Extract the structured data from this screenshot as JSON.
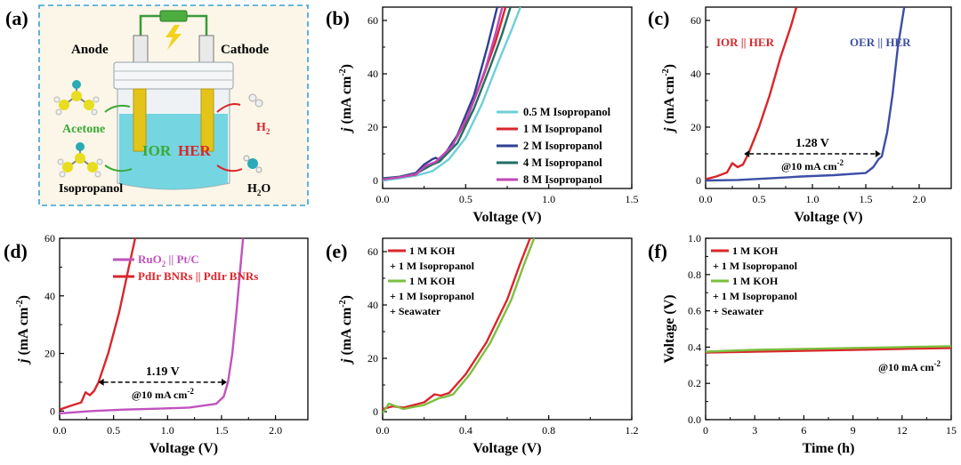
{
  "figure": {
    "schematic": {
      "panel_label": "(a)",
      "anode": "Anode",
      "cathode": "Cathode",
      "ior": "IOR",
      "her": "HER",
      "h2": "H",
      "h2_sub": "2",
      "acetone": "Acetone",
      "isopropanol": "Isopropanol",
      "h2o": "H",
      "h2o_sub": "2",
      "h2o_tail": "O",
      "colors": {
        "frame": "#3aa0d8",
        "ior": "#3aaa35",
        "her": "#d9262b",
        "electrolyte": "#5fd0dc"
      }
    }
  },
  "chart_data": [
    {
      "id": "b",
      "panel_label": "(b)",
      "type": "line",
      "xlabel": "Voltage (V)",
      "ylabel_j": "j",
      "ylabel_unit": " (mA cm",
      "ylabel_exp": "-2",
      "ylabel_close": ")",
      "xlim": [
        0.0,
        1.5
      ],
      "ylim": [
        -3,
        65
      ],
      "xticks": [
        0.0,
        0.5,
        1.0,
        1.5
      ],
      "xtick_labels": [
        "0.0",
        "0.5",
        "1.0",
        "1.5"
      ],
      "yticks": [
        0,
        20,
        40,
        60
      ],
      "ytick_labels": [
        "0",
        "20",
        "40",
        "60"
      ],
      "legend_position": "center-right",
      "series": [
        {
          "name": "0.5 M Isopropanol",
          "color": "#6ccfd8",
          "x": [
            0.0,
            0.1,
            0.2,
            0.3,
            0.4,
            0.5,
            0.6,
            0.7,
            0.78,
            0.83
          ],
          "y": [
            0.0,
            0.8,
            1.8,
            3.5,
            8.0,
            16.0,
            29.0,
            45.0,
            57.0,
            65.0
          ]
        },
        {
          "name": "1 M Isopropanol",
          "color": "#d9262b",
          "x": [
            0.0,
            0.1,
            0.2,
            0.25,
            0.3,
            0.4,
            0.5,
            0.6,
            0.68,
            0.74
          ],
          "y": [
            0.5,
            1.3,
            2.2,
            5.0,
            6.0,
            11.0,
            22.0,
            38.0,
            52.0,
            65.0
          ]
        },
        {
          "name": "2 M Isopropanol",
          "color": "#2f3f93",
          "x": [
            0.0,
            0.1,
            0.2,
            0.25,
            0.3,
            0.32,
            0.35,
            0.45,
            0.55,
            0.63,
            0.69
          ],
          "y": [
            0.8,
            1.4,
            2.8,
            6.0,
            8.0,
            8.5,
            7.5,
            17.0,
            32.0,
            50.0,
            65.0
          ]
        },
        {
          "name": "4 M Isopropanol",
          "color": "#1f6f63",
          "x": [
            0.0,
            0.1,
            0.2,
            0.3,
            0.34,
            0.45,
            0.55,
            0.65,
            0.72,
            0.77
          ],
          "y": [
            0.6,
            1.3,
            2.5,
            6.0,
            7.0,
            14.0,
            27.0,
            43.0,
            55.0,
            65.0
          ]
        },
        {
          "name": "8 M Isopropanol",
          "color": "#c247b6",
          "x": [
            0.0,
            0.1,
            0.2,
            0.26,
            0.32,
            0.42,
            0.52,
            0.62,
            0.68,
            0.72
          ],
          "y": [
            0.4,
            1.2,
            2.3,
            5.5,
            7.0,
            13.0,
            25.0,
            42.0,
            55.0,
            65.0
          ]
        }
      ]
    },
    {
      "id": "c",
      "panel_label": "(c)",
      "type": "line",
      "xlabel": "Voltage (V)",
      "ylabel_j": "j",
      "ylabel_unit": " (mA cm",
      "ylabel_exp": "-2",
      "ylabel_close": ")",
      "xlim": [
        0.0,
        2.3
      ],
      "ylim": [
        -3,
        65
      ],
      "xticks": [
        0.0,
        0.5,
        1.0,
        1.5,
        2.0
      ],
      "xtick_labels": [
        "0.0",
        "0.5",
        "1.0",
        "1.5",
        "2.0"
      ],
      "yticks": [
        0,
        20,
        40,
        60
      ],
      "ytick_labels": [
        "0",
        "20",
        "40",
        "60"
      ],
      "series": [
        {
          "name": "IOR || HER",
          "color": "#d9262b",
          "x": [
            0.0,
            0.1,
            0.2,
            0.25,
            0.3,
            0.35,
            0.4,
            0.5,
            0.6,
            0.7,
            0.8,
            0.85
          ],
          "y": [
            0.5,
            1.5,
            3.0,
            6.5,
            5.0,
            6.0,
            10.0,
            20.0,
            32.0,
            46.0,
            58.0,
            65.0
          ]
        },
        {
          "name": "OER || HER",
          "color": "#3d4ea5",
          "x": [
            0.0,
            0.3,
            0.6,
            0.9,
            1.2,
            1.5,
            1.57,
            1.62,
            1.65,
            1.7,
            1.75,
            1.8,
            1.86
          ],
          "y": [
            0.0,
            0.2,
            0.8,
            1.5,
            2.0,
            2.8,
            5.0,
            8.0,
            9.0,
            18.0,
            32.0,
            50.0,
            65.0
          ]
        }
      ],
      "annotations": {
        "value": "1.28 V",
        "condition": "@10 mA cm",
        "condition_exp": "-2",
        "arrow_x": [
          0.36,
          1.64
        ],
        "arrow_y": 10
      }
    },
    {
      "id": "d",
      "panel_label": "(d)",
      "type": "line",
      "xlabel": "Voltage (V)",
      "ylabel_j": "j",
      "ylabel_unit": " (mA cm",
      "ylabel_exp": "-2",
      "ylabel_close": ")",
      "xlim": [
        0.0,
        2.3
      ],
      "ylim": [
        -3,
        60
      ],
      "xticks": [
        0.0,
        0.5,
        1.0,
        1.5,
        2.0
      ],
      "xtick_labels": [
        "0.0",
        "0.5",
        "1.0",
        "1.5",
        "2.0"
      ],
      "yticks": [
        0,
        20,
        40,
        60
      ],
      "ytick_labels": [
        "0",
        "20",
        "40",
        "60"
      ],
      "legend_position": "top-right",
      "series": [
        {
          "name_a": "RuO",
          "name_sub": "2",
          "name_b": " || Pt/C",
          "color": "#c053bd",
          "x": [
            0.0,
            0.3,
            0.6,
            0.9,
            1.2,
            1.45,
            1.52,
            1.56,
            1.6,
            1.64,
            1.68,
            1.7
          ],
          "y": [
            -0.8,
            0.0,
            0.5,
            0.8,
            1.2,
            2.5,
            5.0,
            10.0,
            20.0,
            35.0,
            52.0,
            60.0
          ]
        },
        {
          "name": "PdIr BNRs || PdIr BNRs",
          "color": "#d9262b",
          "x": [
            0.0,
            0.1,
            0.2,
            0.24,
            0.28,
            0.32,
            0.36,
            0.45,
            0.55,
            0.63,
            0.7
          ],
          "y": [
            0.5,
            1.8,
            3.0,
            6.5,
            5.5,
            7.0,
            10.0,
            20.0,
            34.0,
            48.0,
            60.0
          ]
        }
      ],
      "annotations": {
        "value": "1.19 V",
        "condition": "@10 mA cm",
        "condition_exp": "-2",
        "arrow_x": [
          0.36,
          1.55
        ],
        "arrow_y": 10
      }
    },
    {
      "id": "e",
      "panel_label": "(e)",
      "type": "line",
      "xlabel": "Voltage (V)",
      "ylabel_j": "j",
      "ylabel_unit": " (mA cm",
      "ylabel_exp": "-2",
      "ylabel_close": ")",
      "xlim": [
        0.0,
        1.2
      ],
      "ylim": [
        -3,
        65
      ],
      "xticks": [
        0.0,
        0.4,
        0.8,
        1.2
      ],
      "xtick_labels": [
        "0.0",
        "0.4",
        "0.8",
        "1.2"
      ],
      "yticks": [
        0,
        20,
        40,
        60
      ],
      "ytick_labels": [
        "0",
        "20",
        "40",
        "60"
      ],
      "legend_position": "top-left",
      "legend_lines": [
        {
          "text": "1 M KOH",
          "color": "#d9262b"
        },
        {
          "text": "+ 1 M Isopropanol",
          "color": null
        },
        {
          "text": "1 M KOH",
          "color": "#7cbf3f"
        },
        {
          "text": "+ 1 M Isopropanol",
          "color": null
        },
        {
          "text": "+ Seawater",
          "color": null
        }
      ],
      "series": [
        {
          "name": "1 M KOH + 1 M Isopropanol",
          "color": "#d9262b",
          "x": [
            0.0,
            0.05,
            0.1,
            0.2,
            0.25,
            0.28,
            0.32,
            0.4,
            0.5,
            0.6,
            0.66,
            0.71
          ],
          "y": [
            1.0,
            2.0,
            1.5,
            3.5,
            6.5,
            6.0,
            7.0,
            14.0,
            26.0,
            42.0,
            55.0,
            65.0
          ]
        },
        {
          "name": "1 M KOH + 1 M Isopropanol + Seawater",
          "color": "#7cbf3f",
          "x": [
            0.0,
            0.03,
            0.1,
            0.2,
            0.27,
            0.3,
            0.34,
            0.42,
            0.52,
            0.62,
            0.68,
            0.73
          ],
          "y": [
            -0.5,
            3.0,
            1.0,
            2.5,
            5.0,
            5.5,
            6.5,
            14.0,
            26.0,
            42.0,
            55.0,
            65.0
          ]
        }
      ]
    },
    {
      "id": "f",
      "panel_label": "(f)",
      "type": "line",
      "xlabel": "Time (h)",
      "ylabel": "Voltage (V)",
      "xlim": [
        0,
        15
      ],
      "ylim": [
        0.0,
        1.0
      ],
      "xticks": [
        0,
        3,
        6,
        9,
        12,
        15
      ],
      "xtick_labels": [
        "0",
        "3",
        "6",
        "9",
        "12",
        "15"
      ],
      "yticks": [
        0.0,
        0.2,
        0.4,
        0.6,
        0.8,
        1.0
      ],
      "ytick_labels": [
        "0.0",
        "0.2",
        "0.4",
        "0.6",
        "0.8",
        "1.0"
      ],
      "legend_position": "top-left",
      "legend_lines": [
        {
          "text": "1 M KOH",
          "color": "#d9262b"
        },
        {
          "text": "+ 1 M Isopropanol",
          "color": null
        },
        {
          "text": "1 M KOH",
          "color": "#7cbf3f"
        },
        {
          "text": "+ 1 M Isopropanol",
          "color": null
        },
        {
          "text": "+ Seawater",
          "color": null
        }
      ],
      "series": [
        {
          "name": "1 M KOH + 1 M Isopropanol",
          "color": "#d9262b",
          "x": [
            0,
            3,
            6,
            9,
            12,
            15
          ],
          "y": [
            0.37,
            0.375,
            0.38,
            0.385,
            0.39,
            0.395
          ]
        },
        {
          "name": "1 M KOH + 1 M Isopropanol + Seawater",
          "color": "#7cbf3f",
          "x": [
            0,
            3,
            6,
            9,
            12,
            15
          ],
          "y": [
            0.375,
            0.385,
            0.39,
            0.395,
            0.4,
            0.405
          ]
        }
      ],
      "annotations": {
        "condition": "@10 mA cm",
        "condition_exp": "-2"
      }
    }
  ]
}
